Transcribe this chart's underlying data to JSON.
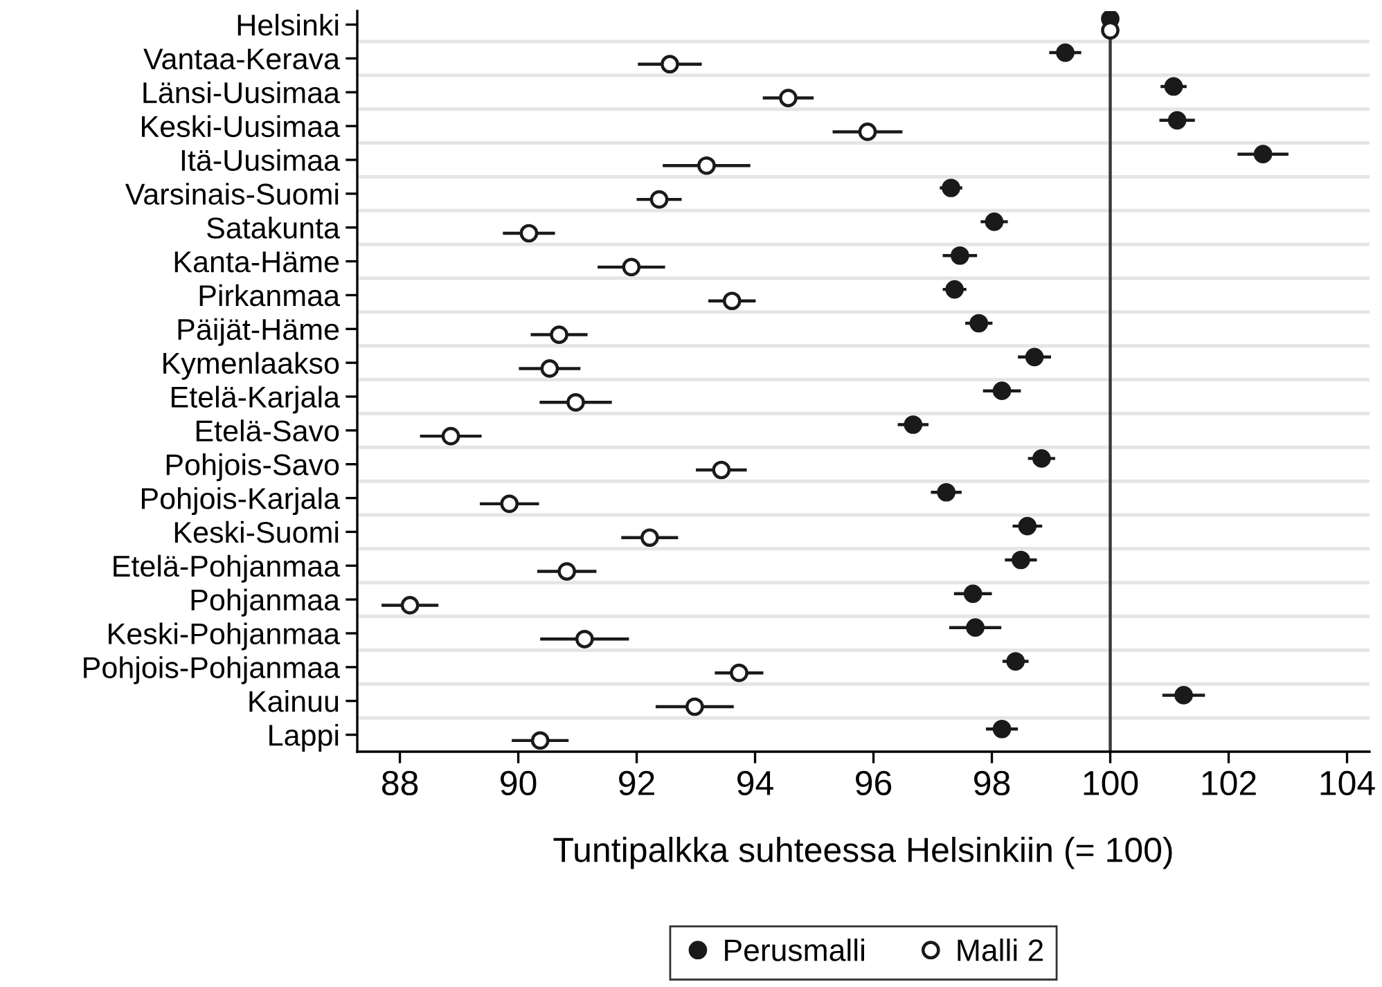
{
  "chart_data": {
    "type": "scatter",
    "orientation": "horizontal",
    "xlabel": "Tuntipalkka suhteessa Helsinkiin (= 100)",
    "categories": [
      "Helsinki",
      "Vantaa-Kerava",
      "Länsi-Uusimaa",
      "Keski-Uusimaa",
      "Itä-Uusimaa",
      "Varsinais-Suomi",
      "Satakunta",
      "Kanta-Häme",
      "Pirkanmaa",
      "Päijät-Häme",
      "Kymenlaakso",
      "Etelä-Karjala",
      "Etelä-Savo",
      "Pohjois-Savo",
      "Pohjois-Karjala",
      "Keski-Suomi",
      "Etelä-Pohjanmaa",
      "Pohjanmaa",
      "Keski-Pohjanmaa",
      "Pohjois-Pohjanmaa",
      "Kainuu",
      "Lappi"
    ],
    "series": [
      {
        "name": "Perusmalli",
        "color": "#1a1a1a",
        "marker": "circle",
        "values": [
          100,
          99.24,
          101.07,
          101.13,
          102.58,
          97.31,
          98.04,
          97.46,
          97.37,
          97.78,
          98.72,
          98.17,
          96.67,
          98.84,
          97.23,
          98.6,
          98.49,
          97.68,
          97.72,
          98.4,
          101.24,
          98.17
        ],
        "errors": [
          null,
          0.27,
          0.22,
          0.3,
          0.43,
          0.19,
          0.23,
          0.29,
          0.2,
          0.23,
          0.28,
          0.32,
          0.26,
          0.23,
          0.26,
          0.25,
          0.27,
          0.32,
          0.44,
          0.22,
          0.36,
          0.27
        ]
      },
      {
        "name": "Malli 2",
        "color": "#1a1a1a",
        "marker": "circle",
        "values": [
          100,
          92.56,
          94.56,
          95.9,
          93.18,
          92.38,
          90.18,
          91.91,
          93.61,
          90.69,
          90.53,
          90.97,
          88.86,
          93.43,
          89.85,
          92.22,
          90.82,
          88.17,
          91.12,
          93.73,
          92.98,
          90.37
        ],
        "errors": [
          null,
          0.54,
          0.43,
          0.59,
          0.74,
          0.38,
          0.44,
          0.57,
          0.4,
          0.48,
          0.52,
          0.61,
          0.52,
          0.43,
          0.5,
          0.48,
          0.5,
          0.48,
          0.75,
          0.41,
          0.66,
          0.48
        ]
      }
    ],
    "xlim": [
      87.28,
      104.38
    ],
    "xticks": [
      88,
      90,
      92,
      94,
      96,
      98,
      100,
      102,
      104
    ],
    "ref_lines": [
      {
        "axis": "x",
        "value": 100,
        "color": "#3a3a3a"
      }
    ],
    "grid": true,
    "legend": "bottom"
  }
}
